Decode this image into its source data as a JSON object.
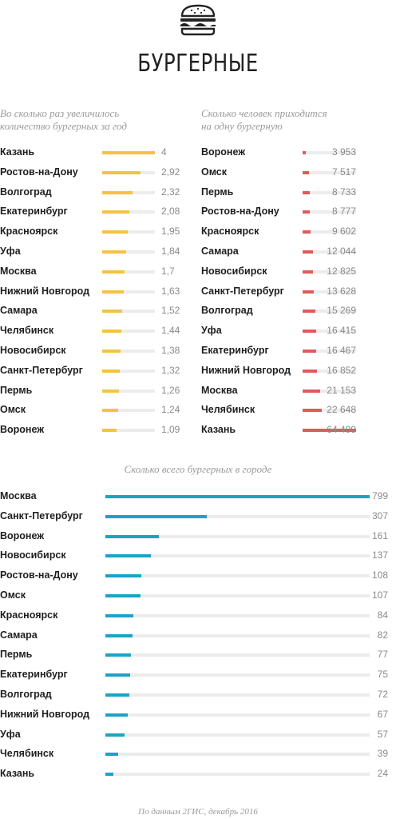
{
  "title": "БУРГЕРНЫЕ",
  "icon": "burger-icon",
  "source": "По данным 2ГИС, декабрь 2016",
  "chart_data": [
    {
      "type": "bar",
      "title": "Во сколько раз увеличилось\nколичество бургерных за год",
      "color": "#f5c242",
      "xlim": [
        0,
        4
      ],
      "categories": [
        "Казань",
        "Ростов-на-Дону",
        "Волгоград",
        "Екатеринбург",
        "Красноярск",
        "Уфа",
        "Москва",
        "Нижний Новгород",
        "Самара",
        "Челябинск",
        "Новосибирск",
        "Санкт-Петербург",
        "Пермь",
        "Омск",
        "Воронеж"
      ],
      "values": [
        4,
        2.92,
        2.32,
        2.08,
        1.95,
        1.84,
        1.7,
        1.63,
        1.52,
        1.44,
        1.38,
        1.32,
        1.26,
        1.24,
        1.09
      ],
      "labels": [
        "4",
        "2,92",
        "2,32",
        "2,08",
        "1,95",
        "1,84",
        "1,7",
        "1,63",
        "1,52",
        "1,44",
        "1,38",
        "1,32",
        "1,26",
        "1,24",
        "1,09"
      ]
    },
    {
      "type": "bar",
      "title": "Сколько человек приходится\nна одну бургерную",
      "color": "#e05a5a",
      "xlim": [
        0,
        64499
      ],
      "categories": [
        "Воронеж",
        "Омск",
        "Пермь",
        "Ростов-на-Дону",
        "Красноярск",
        "Самара",
        "Новосибирск",
        "Санкт-Петербург",
        "Волгоград",
        "Уфа",
        "Екатеринбург",
        "Нижний Новгород",
        "Москва",
        "Челябинск",
        "Казань"
      ],
      "values": [
        3953,
        7517,
        8733,
        8777,
        9602,
        12044,
        12825,
        13628,
        15269,
        16415,
        16467,
        16852,
        21153,
        22648,
        64499
      ],
      "labels": [
        "3 953",
        "7 517",
        "8 733",
        "8 777",
        "9 602",
        "12 044",
        "12 825",
        "13 628",
        "15 269",
        "16 415",
        "16 467",
        "16 852",
        "21 153",
        "22 648",
        "64 499"
      ]
    },
    {
      "type": "bar",
      "title": "Сколько всего бургерных в городе",
      "color": "#1aa3c9",
      "xlim": [
        0,
        799
      ],
      "categories": [
        "Москва",
        "Санкт-Петербург",
        "Воронеж",
        "Новосибирск",
        "Ростов-на-Дону",
        "Омск",
        "Красноярск",
        "Самара",
        "Пермь",
        "Екатеринбург",
        "Волгоград",
        "Нижний Новгород",
        "Уфа",
        "Челябинск",
        "Казань"
      ],
      "values": [
        799,
        307,
        161,
        137,
        108,
        107,
        84,
        82,
        77,
        75,
        72,
        67,
        57,
        39,
        24
      ],
      "labels": [
        "799",
        "307",
        "161",
        "137",
        "108",
        "107",
        "84",
        "82",
        "77",
        "75",
        "72",
        "67",
        "57",
        "39",
        "24"
      ]
    }
  ]
}
